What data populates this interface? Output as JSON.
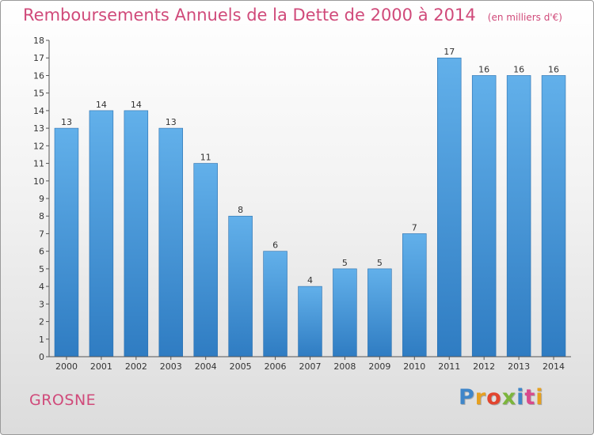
{
  "header": {
    "title": "Remboursements Annuels de la Dette de 2000 à 2014",
    "unit": "(en milliers d'€)"
  },
  "footer": {
    "commune": "GROSNE",
    "logo_letters": [
      "P",
      "r",
      "o",
      "x",
      "i",
      "t",
      "i"
    ]
  },
  "colors": {
    "bar": "#3d8fd6",
    "bar_light": "#62b0ea",
    "title": "#d04a7a",
    "axis": "#555555"
  },
  "chart_data": {
    "type": "bar",
    "title": "Remboursements Annuels de la Dette de 2000 à 2014",
    "xlabel": "",
    "ylabel": "",
    "categories": [
      "2000",
      "2001",
      "2002",
      "2003",
      "2004",
      "2005",
      "2006",
      "2007",
      "2008",
      "2009",
      "2010",
      "2011",
      "2012",
      "2013",
      "2014"
    ],
    "values": [
      13,
      14,
      14,
      13,
      11,
      8,
      6,
      4,
      5,
      5,
      7,
      17,
      16,
      16,
      16
    ],
    "ylim": [
      0,
      18
    ],
    "yticks": [
      0,
      1,
      2,
      3,
      4,
      5,
      6,
      7,
      8,
      9,
      10,
      11,
      12,
      13,
      14,
      15,
      16,
      17,
      18
    ],
    "grid": false,
    "data_labels": true
  }
}
